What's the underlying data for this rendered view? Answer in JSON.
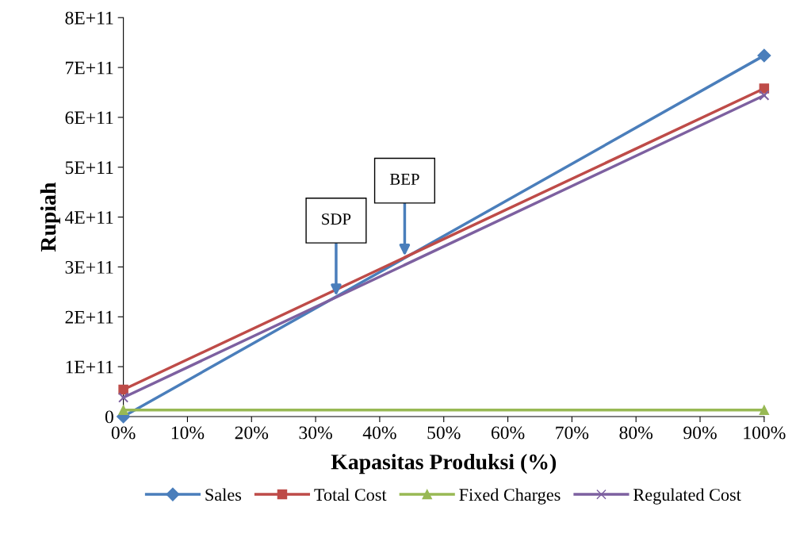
{
  "chart_data": {
    "type": "line",
    "xlabel": "Kapasitas Produksi (%)",
    "ylabel": "Rupiah",
    "x": [
      0,
      100
    ],
    "series": [
      {
        "name": "Sales",
        "color": "#4a7ebb",
        "marker": "diamond",
        "values": [
          0,
          724000000000
        ]
      },
      {
        "name": "Total Cost",
        "color": "#be4b48",
        "marker": "square",
        "values": [
          54000000000,
          658000000000
        ]
      },
      {
        "name": "Fixed Charges",
        "color": "#98b954",
        "marker": "triangle",
        "values": [
          13000000000,
          13000000000
        ]
      },
      {
        "name": "Regulated Cost",
        "color": "#7d60a0",
        "marker": "cross",
        "values": [
          38000000000,
          644000000000
        ]
      }
    ],
    "xlim": [
      0,
      100
    ],
    "xticks": [
      {
        "value": 0,
        "label": "0%"
      },
      {
        "value": 10,
        "label": "10%"
      },
      {
        "value": 20,
        "label": "20%"
      },
      {
        "value": 30,
        "label": "30%"
      },
      {
        "value": 40,
        "label": "40%"
      },
      {
        "value": 50,
        "label": "50%"
      },
      {
        "value": 60,
        "label": "60%"
      },
      {
        "value": 70,
        "label": "70%"
      },
      {
        "value": 80,
        "label": "80%"
      },
      {
        "value": 90,
        "label": "90%"
      },
      {
        "value": 100,
        "label": "100%"
      }
    ],
    "ylim": [
      0,
      800000000000
    ],
    "yticks": [
      0,
      {
        "value": 100000000000,
        "label": "1E+11"
      },
      {
        "value": 200000000000,
        "label": "2E+11"
      },
      {
        "value": 300000000000,
        "label": "3E+11"
      },
      {
        "value": 400000000000,
        "label": "4E+11"
      },
      {
        "value": 500000000000,
        "label": "5E+11"
      },
      {
        "value": 600000000000,
        "label": "6E+11"
      },
      {
        "value": 700000000000,
        "label": "7E+11"
      },
      {
        "value": 800000000000,
        "label": "8E+11"
      }
    ],
    "annotations": [
      {
        "text": "SDP",
        "x": 33.2,
        "y": 242000000000
      },
      {
        "text": "BEP",
        "x": 43.9,
        "y": 322000000000
      }
    ],
    "grid": false,
    "legend": "bottom",
    "line_style": "solid"
  }
}
